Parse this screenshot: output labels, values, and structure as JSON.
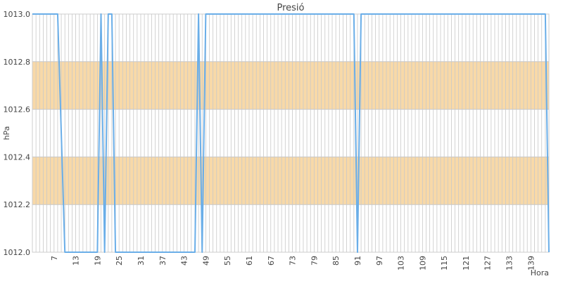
{
  "chart_data": {
    "type": "line",
    "title": "Presió",
    "xlabel": "Hora",
    "ylabel": "hPa",
    "ylim": [
      1012.0,
      1013.0
    ],
    "xlim": [
      1,
      144
    ],
    "y_ticks": [
      "1012.0",
      "1012.2",
      "1012.4",
      "1012.6",
      "1012.8",
      "1013.0"
    ],
    "x_ticks": [
      "7",
      "13",
      "19",
      "25",
      "31",
      "37",
      "43",
      "49",
      "55",
      "61",
      "67",
      "73",
      "79",
      "85",
      "91",
      "97",
      "103",
      "109",
      "115",
      "121",
      "127",
      "133",
      "139"
    ],
    "bands": [
      {
        "from": 1012.2,
        "to": 1012.4,
        "color": "#f8d9a8"
      },
      {
        "from": 1012.6,
        "to": 1012.8,
        "color": "#f8d9a8"
      }
    ],
    "grid": true,
    "series": [
      {
        "color": "#6aaee8",
        "x": [
          1,
          8,
          10,
          19,
          20,
          21,
          22,
          23,
          24,
          46,
          47,
          48,
          49,
          90,
          91,
          92,
          143,
          144
        ],
        "y": [
          1013.0,
          1013.0,
          1012.0,
          1012.0,
          1013.0,
          1012.0,
          1013.0,
          1013.0,
          1012.0,
          1012.0,
          1013.0,
          1012.0,
          1013.0,
          1013.0,
          1012.0,
          1013.0,
          1013.0,
          1012.0
        ]
      }
    ]
  }
}
